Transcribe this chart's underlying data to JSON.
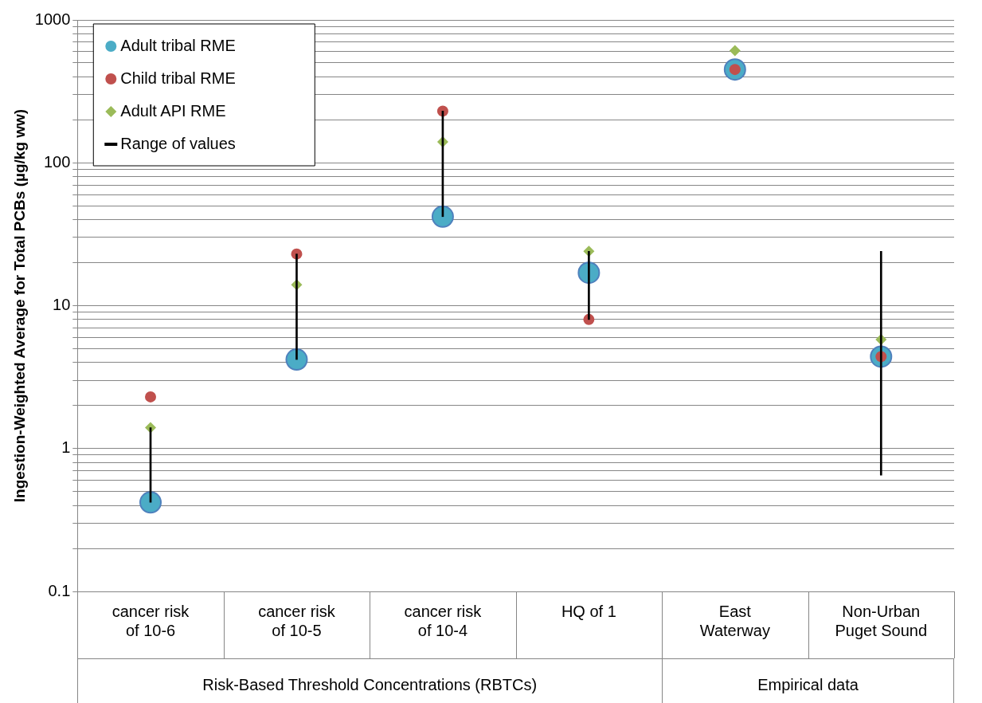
{
  "chart_data": {
    "type": "scatter",
    "ylabel": "Ingestion-Weighted Average for Total PCBs (µg/kg ww)",
    "categories": [
      "cancer risk of 10-6",
      "cancer risk of 10-5",
      "cancer risk of 10-4",
      "HQ of 1",
      "East Waterway",
      "Non-Urban Puget Sound"
    ],
    "series": [
      {
        "name": "Range of values",
        "type": "bar",
        "color": "#000000",
        "base": [
          0.42,
          4.2,
          42,
          8,
          null,
          0.65
        ],
        "values": [
          0.98,
          18.8,
          188,
          16,
          null,
          23.35
        ]
      },
      {
        "name": "Adult tribal RME",
        "color": "#4bacc6",
        "marker": "circle",
        "values": [
          0.42,
          4.2,
          42,
          17,
          450,
          4.4
        ]
      },
      {
        "name": "Child tribal RME",
        "color": "#c0504d",
        "marker": "circle",
        "values": [
          2.3,
          23,
          230,
          8,
          450,
          4.4
        ]
      },
      {
        "name": "Adult API RME",
        "color": "#9bbb59",
        "marker": "diamond",
        "values": [
          1.4,
          14,
          140,
          24,
          610,
          5.8
        ]
      }
    ],
    "log": "y",
    "ylim": [
      0.1,
      1000
    ],
    "yticks": [
      0.1,
      {
        "value": 0.2,
        "label": null
      },
      {
        "value": 0.3,
        "label": null
      },
      {
        "value": 0.4,
        "label": null
      },
      {
        "value": 0.5,
        "label": null
      },
      {
        "value": 0.6,
        "label": null
      },
      {
        "value": 0.7,
        "label": null
      },
      {
        "value": 0.8,
        "label": null
      },
      {
        "value": 0.9,
        "label": null
      },
      1,
      {
        "value": 2,
        "label": null
      },
      {
        "value": 3,
        "label": null
      },
      {
        "value": 4,
        "label": null
      },
      {
        "value": 5,
        "label": null
      },
      {
        "value": 6,
        "label": null
      },
      {
        "value": 7,
        "label": null
      },
      {
        "value": 8,
        "label": null
      },
      {
        "value": 9,
        "label": null
      },
      10,
      {
        "value": 20,
        "label": null
      },
      {
        "value": 30,
        "label": null
      },
      {
        "value": 40,
        "label": null
      },
      {
        "value": 50,
        "label": null
      },
      {
        "value": 60,
        "label": null
      },
      {
        "value": 70,
        "label": null
      },
      {
        "value": 80,
        "label": null
      },
      {
        "value": 90,
        "label": null
      },
      100,
      {
        "value": 200,
        "label": null
      },
      {
        "value": 300,
        "label": null
      },
      {
        "value": 400,
        "label": null
      },
      {
        "value": 500,
        "label": null
      },
      {
        "value": 600,
        "label": null
      },
      {
        "value": 700,
        "label": null
      },
      {
        "value": 800,
        "label": null
      },
      {
        "value": 900,
        "label": null
      },
      1000
    ],
    "grid": "y",
    "legend": "top left",
    "annotations": [
      "Risk-Based Threshold Concentrations (RBTCs)",
      "Empirical data"
    ]
  }
}
